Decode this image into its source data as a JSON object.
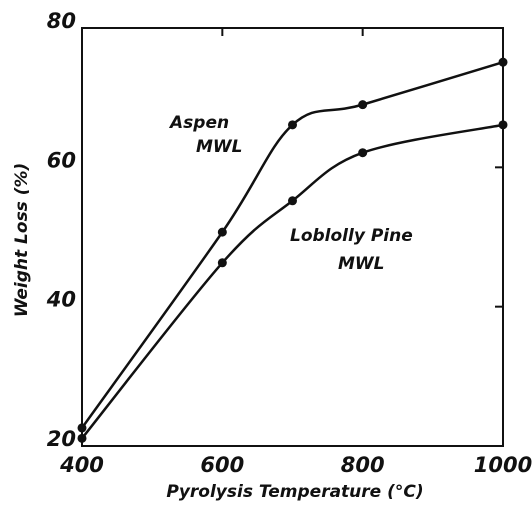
{
  "chart_data": {
    "type": "line",
    "xlabel": "Pyrolysis Temperature (°C)",
    "ylabel": "Weight Loss (%)",
    "xlim": [
      400,
      1000
    ],
    "ylim": [
      20,
      80
    ],
    "xticks": [
      400,
      600,
      800,
      1000
    ],
    "yticks": [
      20,
      40,
      60,
      80
    ],
    "series": [
      {
        "color": "#111111",
        "x": [
          400,
          600,
          700,
          800,
          1000
        ],
        "values": [
          22.6,
          50.7,
          66.1,
          69,
          75.1
        ]
      },
      {
        "color": "#111111",
        "x": [
          400,
          600,
          700,
          800,
          1000
        ],
        "values": [
          21.1,
          46.3,
          55.2,
          62.1,
          66.1
        ]
      }
    ],
    "annotations": [
      [
        "Aspen",
        "MWL"
      ],
      [
        "Loblolly Pine",
        "MWL"
      ]
    ]
  }
}
